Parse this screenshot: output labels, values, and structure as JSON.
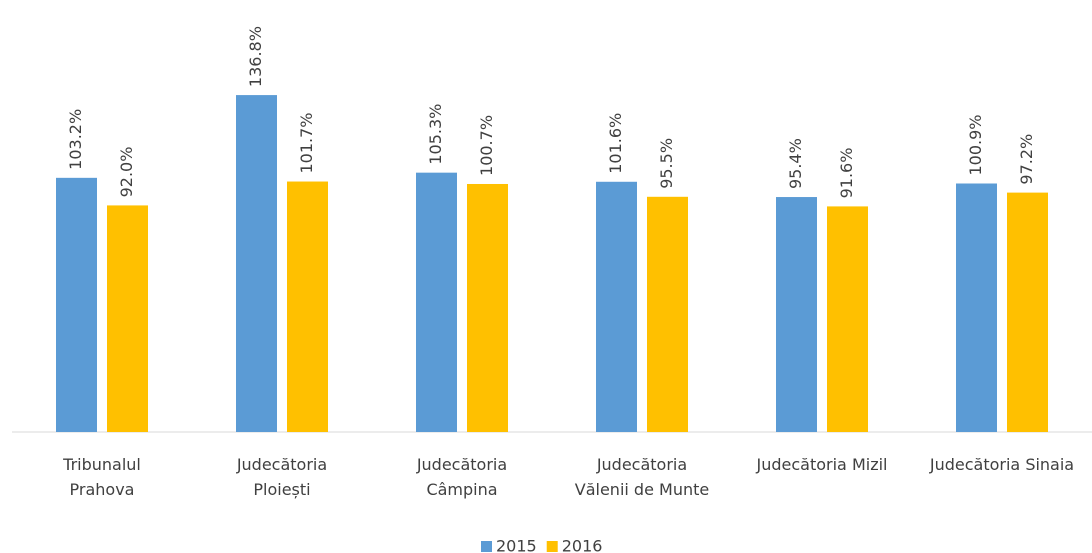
{
  "chart_data": {
    "type": "bar",
    "categories": [
      "Tribunalul\nPrahova",
      "Judecătoria\nPloiești",
      "Judecătoria\nCâmpina",
      "Judecătoria\nVălenii de Munte",
      "Judecătoria Mizil",
      "Judecătoria Sinaia"
    ],
    "series": [
      {
        "name": "2015",
        "color": "#5b9bd5",
        "values": [
          103.2,
          136.8,
          105.3,
          101.6,
          95.4,
          100.9
        ],
        "value_labels": [
          "103.2%",
          "136.8%",
          "105.3%",
          "101.6%",
          "95.4%",
          "100.9%"
        ]
      },
      {
        "name": "2016",
        "color": "#ffc000",
        "values": [
          92.0,
          101.7,
          100.7,
          95.5,
          91.6,
          97.2
        ],
        "value_labels": [
          "92.0%",
          "101.7%",
          "100.7%",
          "95.5%",
          "91.6%",
          "97.2%"
        ]
      }
    ],
    "ylim": [
      0,
      175
    ],
    "legend": "bottom"
  }
}
